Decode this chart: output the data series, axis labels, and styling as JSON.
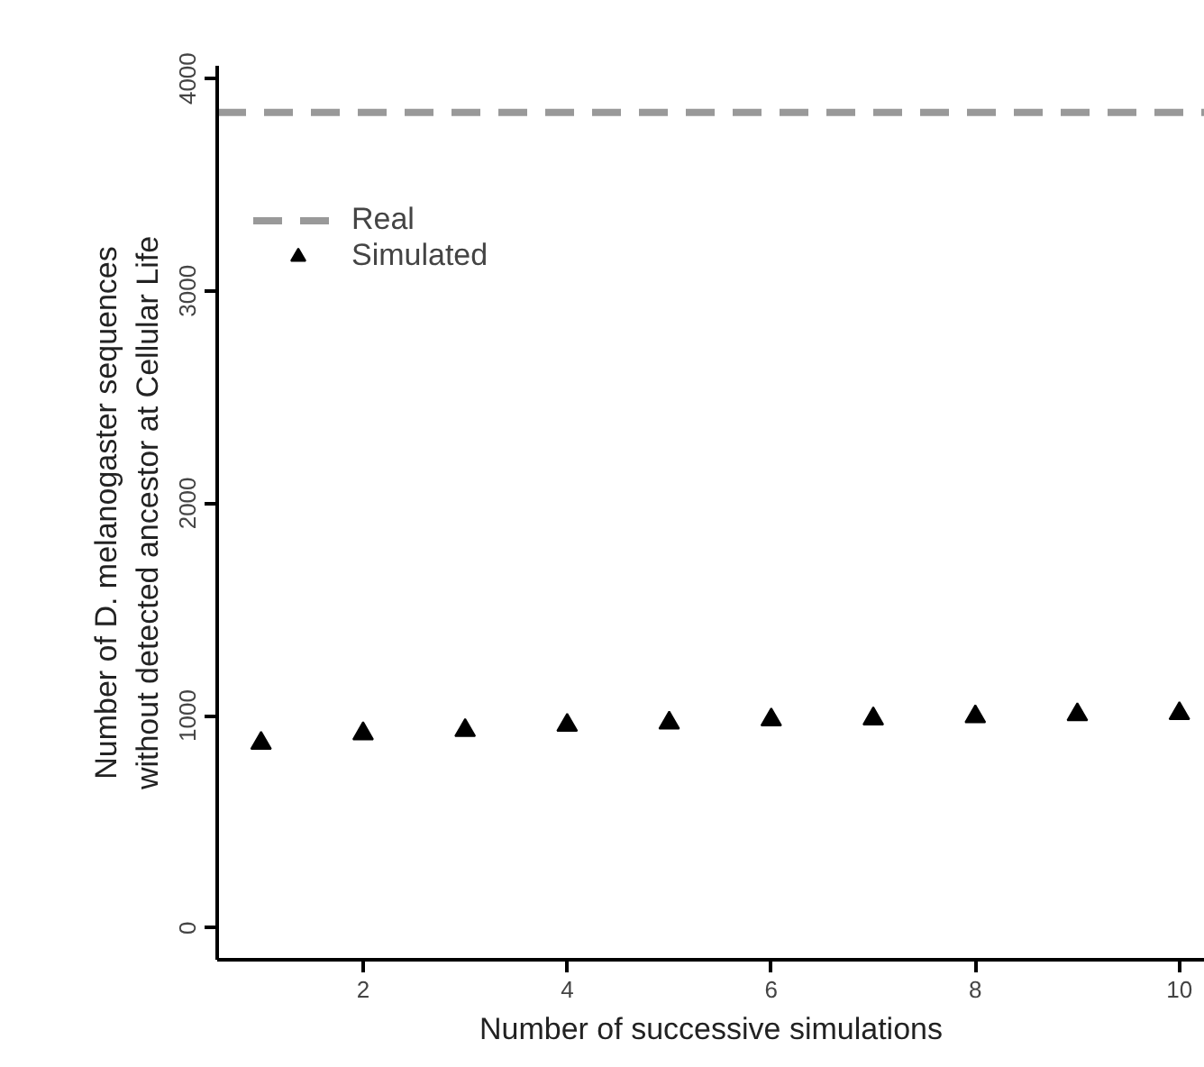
{
  "chart_data": {
    "type": "scatter",
    "xlabel": "Number of successive simulations",
    "ylabel": "Number of D. melanogaster sequences\nwithout detected ancestor at Cellular Life",
    "x": [
      1,
      2,
      3,
      4,
      5,
      6,
      7,
      8,
      9,
      10
    ],
    "series": [
      {
        "name": "Simulated",
        "color": "#000000",
        "values": [
          870,
          915,
          930,
          955,
          965,
          980,
          985,
          995,
          1005,
          1010
        ]
      }
    ],
    "ref_lines": [
      {
        "axis": "y",
        "value": 3840,
        "label": "Real",
        "color": "#999999",
        "line_style": "dashed"
      }
    ],
    "xlim": [
      0.57,
      10.25
    ],
    "ylim": [
      -150,
      4060
    ],
    "xticks": [
      2,
      4,
      6,
      8,
      10
    ],
    "yticks": [
      0,
      1000,
      2000,
      3000,
      4000
    ],
    "marker": "triangle",
    "legend": "top left",
    "grid": false
  }
}
